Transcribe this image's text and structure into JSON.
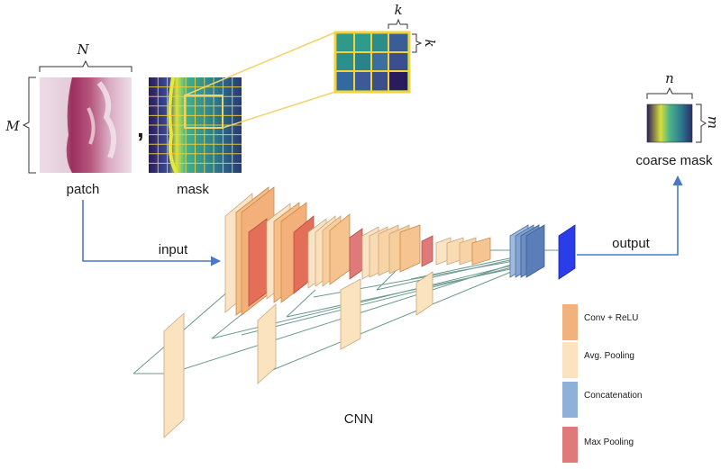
{
  "labels": {
    "patch": "patch",
    "mask": "mask",
    "input": "input",
    "output": "output",
    "coarse_mask": "coarse mask",
    "cnn": "CNN",
    "N": "N",
    "M": "M",
    "k_top": "k",
    "k_side": "k",
    "n": "n",
    "m": "m",
    "comma": ","
  },
  "legend": {
    "items": [
      {
        "label": "Conv + ReLU",
        "color": "#f2b27d"
      },
      {
        "label": "Avg. Pooling",
        "color": "#fbe3bf"
      },
      {
        "label": "Concatenation",
        "color": "#8fb0d9"
      },
      {
        "label": "Max Pooling",
        "color": "#e07a7a"
      }
    ]
  },
  "colors": {
    "arrow": "#4a78c8",
    "zoom_lines": "#f2d36b",
    "grid_border": "#f5d23a",
    "skip_lines": "#6b9a8e",
    "output_block": "#2a3de8"
  }
}
